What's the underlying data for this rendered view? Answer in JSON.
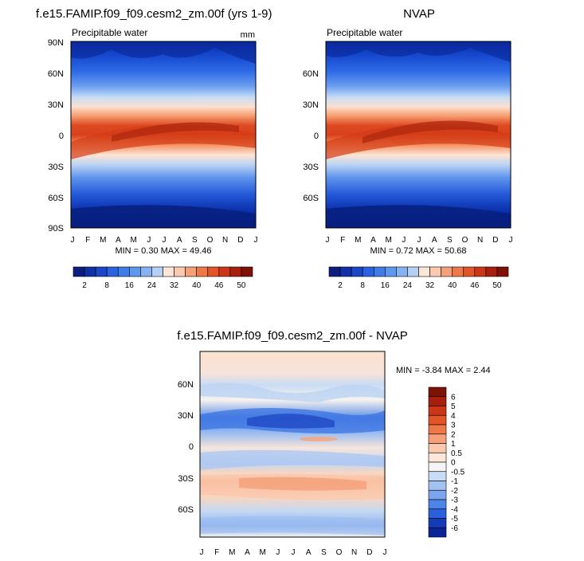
{
  "variable": "Precipitable water",
  "units": "mm",
  "colorbar_levels": [
    "2",
    "8",
    "16",
    "24",
    "32",
    "40",
    "46",
    "50"
  ],
  "diff_colorbar_levels": [
    "6",
    "5",
    "4",
    "3",
    "2",
    "1",
    "0.5",
    "0",
    "-0.5",
    "-1",
    "-2",
    "-3",
    "-4",
    "-5",
    "-6"
  ],
  "month_ticks": [
    "J",
    "F",
    "M",
    "A",
    "M",
    "J",
    "J",
    "A",
    "S",
    "O",
    "N",
    "D",
    "J"
  ],
  "chart_data": [
    {
      "type": "heatmap",
      "title": "f.e15.FAMIP.f09_f09.cesm2_zm.00f (yrs 1-9)",
      "subtitle_left": "Precipitable water",
      "subtitle_right": "mm",
      "xlabel": "",
      "ylabel": "",
      "x_ticks": [
        "J",
        "F",
        "M",
        "A",
        "M",
        "J",
        "J",
        "A",
        "S",
        "O",
        "N",
        "D",
        "J"
      ],
      "y_ticks": [
        "90N",
        "60N",
        "30N",
        "0",
        "30S",
        "60S",
        "90S"
      ],
      "ylim": [
        -90,
        90
      ],
      "min_text": "MIN =   0.30 MAX =  49.46",
      "min": 0.3,
      "max": 49.46,
      "colorbar_levels": [
        2,
        8,
        16,
        24,
        32,
        40,
        46,
        50
      ]
    },
    {
      "type": "heatmap",
      "title": "NVAP",
      "subtitle_left": "Precipitable water",
      "xlabel": "",
      "ylabel": "",
      "x_ticks": [
        "J",
        "F",
        "M",
        "A",
        "M",
        "J",
        "J",
        "A",
        "S",
        "O",
        "N",
        "D",
        "J"
      ],
      "y_ticks": [
        "60N",
        "30N",
        "0",
        "30S",
        "60S"
      ],
      "ylim": [
        -90,
        90
      ],
      "min_text": "MIN =   0.72 MAX =  50.68",
      "min": 0.72,
      "max": 50.68,
      "colorbar_levels": [
        2,
        8,
        16,
        24,
        32,
        40,
        46,
        50
      ]
    },
    {
      "type": "heatmap",
      "title": "f.e15.FAMIP.f09_f09.cesm2_zm.00f - NVAP",
      "xlabel": "",
      "ylabel": "",
      "x_ticks": [
        "J",
        "F",
        "M",
        "A",
        "M",
        "J",
        "J",
        "A",
        "S",
        "O",
        "N",
        "D",
        "J"
      ],
      "y_ticks": [
        "60N",
        "30N",
        "0",
        "30S",
        "60S"
      ],
      "ylim": [
        -90,
        90
      ],
      "min_text": "MIN =  -3.84 MAX =   2.44",
      "min": -3.84,
      "max": 2.44,
      "colorbar_levels": [
        6,
        5,
        4,
        3,
        2,
        1,
        0.5,
        0,
        -0.5,
        -1,
        -2,
        -3,
        -4,
        -5,
        -6
      ]
    }
  ]
}
